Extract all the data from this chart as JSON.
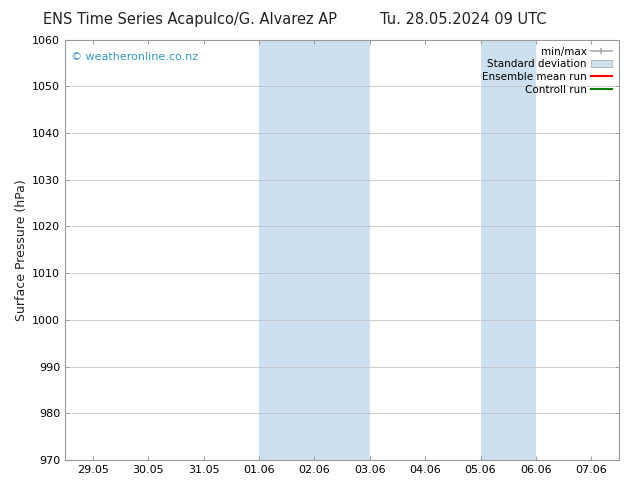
{
  "title_left": "ENS Time Series Acapulco/G. Alvarez AP",
  "title_right": "Tu. 28.05.2024 09 UTC",
  "ylabel": "Surface Pressure (hPa)",
  "ylim": [
    970,
    1060
  ],
  "yticks": [
    970,
    980,
    990,
    1000,
    1010,
    1020,
    1030,
    1040,
    1050,
    1060
  ],
  "xtick_labels": [
    "29.05",
    "30.05",
    "31.05",
    "01.06",
    "02.06",
    "03.06",
    "04.06",
    "05.06",
    "06.06",
    "07.06"
  ],
  "xtick_positions": [
    0,
    1,
    2,
    3,
    4,
    5,
    6,
    7,
    8,
    9
  ],
  "xlim": [
    -0.5,
    9.5
  ],
  "shaded_regions": [
    {
      "x_start": 3,
      "x_end": 5,
      "color": "#cce0f0"
    },
    {
      "x_start": 7,
      "x_end": 8,
      "color": "#cce0f0"
    }
  ],
  "watermark_text": "© weatheronline.co.nz",
  "watermark_color": "#3399cc",
  "legend_entries": [
    {
      "label": "min/max",
      "color": "#aaaaaa",
      "linestyle": "-",
      "linewidth": 1.2,
      "type": "line_with_caps"
    },
    {
      "label": "Standard deviation",
      "color": "#cce0f0",
      "edge_color": "#aaaaaa",
      "type": "rect"
    },
    {
      "label": "Ensemble mean run",
      "color": "red",
      "linestyle": "-",
      "linewidth": 1.5,
      "type": "line"
    },
    {
      "label": "Controll run",
      "color": "green",
      "linestyle": "-",
      "linewidth": 1.5,
      "type": "line"
    }
  ],
  "bg_color": "#ffffff",
  "grid_color": "#bbbbbb",
  "font_color": "#222222",
  "title_fontsize": 10.5,
  "watermark_fontsize": 8,
  "ylabel_fontsize": 9,
  "tick_fontsize": 8,
  "legend_fontsize": 7.5
}
